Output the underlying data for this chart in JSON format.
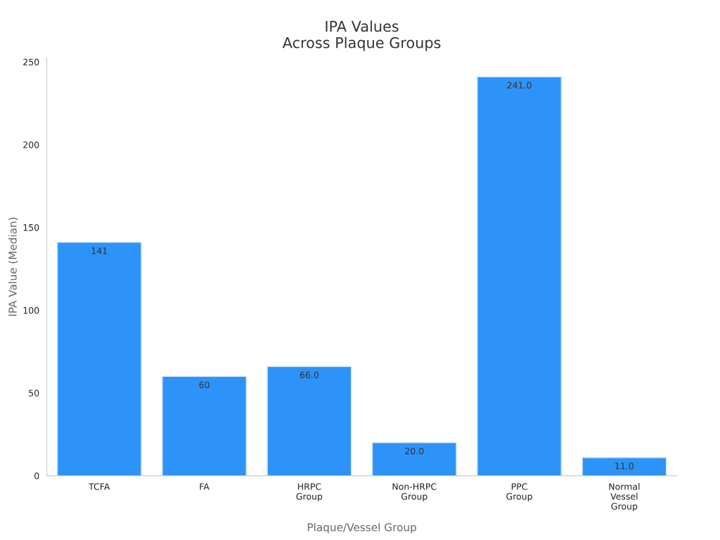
{
  "chart_data": {
    "type": "bar",
    "title": "IPA Values\nAcross Plaque Groups",
    "xlabel": "Plaque/Vessel Group",
    "ylabel": "IPA Value (Median)",
    "categories": [
      "TCFA",
      "FA",
      "HRPC\nGroup",
      "Non-HRPC\nGroup",
      "PPC\nGroup",
      "Normal\nVessel\nGroup"
    ],
    "values": [
      141,
      60,
      66,
      20,
      241,
      11
    ],
    "value_labels": [
      "141",
      "60",
      "66.0",
      "20.0",
      "241.0",
      "11.0"
    ],
    "color": "#2e93f8",
    "ylim": [
      0,
      252.5
    ],
    "yticks": [
      0,
      50,
      100,
      150,
      200,
      250
    ],
    "grid": false,
    "legend": false
  }
}
